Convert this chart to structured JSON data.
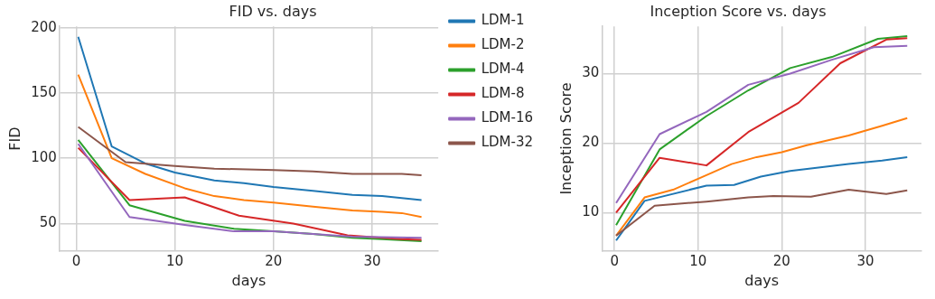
{
  "chart_data": [
    {
      "type": "line",
      "title": "FID vs. days",
      "xlabel": "days",
      "ylabel": "FID",
      "xlim": [
        -1.7,
        36.7
      ],
      "xticks": [
        0,
        10,
        20,
        30
      ],
      "ylim": [
        29,
        201
      ],
      "yticks": [
        50,
        100,
        150,
        200
      ],
      "grid": true,
      "legend": "right",
      "marker": "none",
      "series": [
        {
          "name": "LDM-1",
          "color": "#1f77b4",
          "x": [
            0.2,
            3.6,
            7,
            10,
            14,
            17,
            20,
            24,
            28,
            31,
            35
          ],
          "values": [
            193,
            109,
            96,
            89,
            83,
            81,
            78,
            75,
            72,
            71,
            68
          ]
        },
        {
          "name": "LDM-2",
          "color": "#ff7f0e",
          "x": [
            0.2,
            3.6,
            7,
            11,
            14,
            17,
            20,
            24,
            28,
            31,
            33,
            35
          ],
          "values": [
            164,
            100,
            88,
            77,
            71,
            68,
            66,
            63,
            60,
            59,
            58,
            55
          ]
        },
        {
          "name": "LDM-4",
          "color": "#2ca02c",
          "x": [
            0.2,
            5.4,
            11,
            16,
            20,
            24,
            28,
            31,
            35
          ],
          "values": [
            114,
            64,
            52,
            46,
            44,
            42,
            39,
            38,
            36.5
          ]
        },
        {
          "name": "LDM-8",
          "color": "#d62728",
          "x": [
            0.2,
            5.4,
            11,
            16.5,
            22,
            27.5,
            31,
            33,
            35
          ],
          "values": [
            108,
            68,
            70,
            56,
            50,
            41,
            39,
            38,
            37.5
          ]
        },
        {
          "name": "LDM-16",
          "color": "#9467bd",
          "x": [
            0.2,
            5.4,
            11,
            16,
            20,
            24,
            28,
            31,
            35
          ],
          "values": [
            111,
            55,
            49,
            44,
            44,
            42,
            40,
            39.5,
            39
          ]
        },
        {
          "name": "LDM-32",
          "color": "#8c564b",
          "x": [
            0.2,
            5,
            10,
            14,
            20,
            24,
            28,
            33,
            35
          ],
          "values": [
            124,
            97,
            94,
            92,
            91,
            90,
            88,
            88,
            87
          ]
        }
      ]
    },
    {
      "type": "line",
      "title": "Inception Score vs. days",
      "xlabel": "days",
      "ylabel": "Inception Score",
      "xlim": [
        -1.5,
        36.7
      ],
      "xticks": [
        0,
        10,
        20,
        30
      ],
      "ylim": [
        4.5,
        36.8
      ],
      "yticks": [
        10,
        20,
        30
      ],
      "grid": true,
      "marker": "none",
      "series": [
        {
          "color": "#1f77b4",
          "x": [
            0.2,
            3.6,
            11,
            14.3,
            17.5,
            21,
            28,
            32,
            35
          ],
          "values": [
            6,
            11.7,
            13.9,
            14,
            15.2,
            16,
            17,
            17.5,
            18
          ]
        },
        {
          "color": "#ff7f0e",
          "x": [
            0.2,
            3.6,
            7,
            11,
            14,
            17,
            20,
            23,
            28,
            32,
            35
          ],
          "values": [
            6.7,
            12.2,
            13.3,
            15.4,
            17,
            18,
            18.7,
            19.7,
            21.1,
            22.5,
            23.6
          ]
        },
        {
          "color": "#2ca02c",
          "x": [
            0.2,
            5.4,
            11,
            16,
            21,
            26,
            31.5,
            35
          ],
          "values": [
            8.2,
            19.1,
            23.9,
            27.6,
            30.8,
            32.4,
            35,
            35.4
          ]
        },
        {
          "color": "#d62728",
          "x": [
            0.2,
            5.4,
            11,
            16,
            22,
            27,
            32.5,
            35
          ],
          "values": [
            10,
            17.9,
            16.8,
            21.6,
            25.8,
            31.5,
            34.9,
            35.1
          ]
        },
        {
          "color": "#9467bd",
          "x": [
            0.2,
            5.4,
            11,
            16,
            21,
            26,
            31,
            35
          ],
          "values": [
            11.4,
            21.3,
            24.5,
            28.4,
            30,
            32,
            33.8,
            34
          ]
        },
        {
          "color": "#8c564b",
          "x": [
            0.2,
            4.8,
            11,
            16,
            19,
            23.5,
            28,
            32.5,
            35
          ],
          "values": [
            6.7,
            11,
            11.6,
            12.2,
            12.4,
            12.3,
            13.3,
            12.7,
            13.2
          ]
        }
      ]
    }
  ]
}
